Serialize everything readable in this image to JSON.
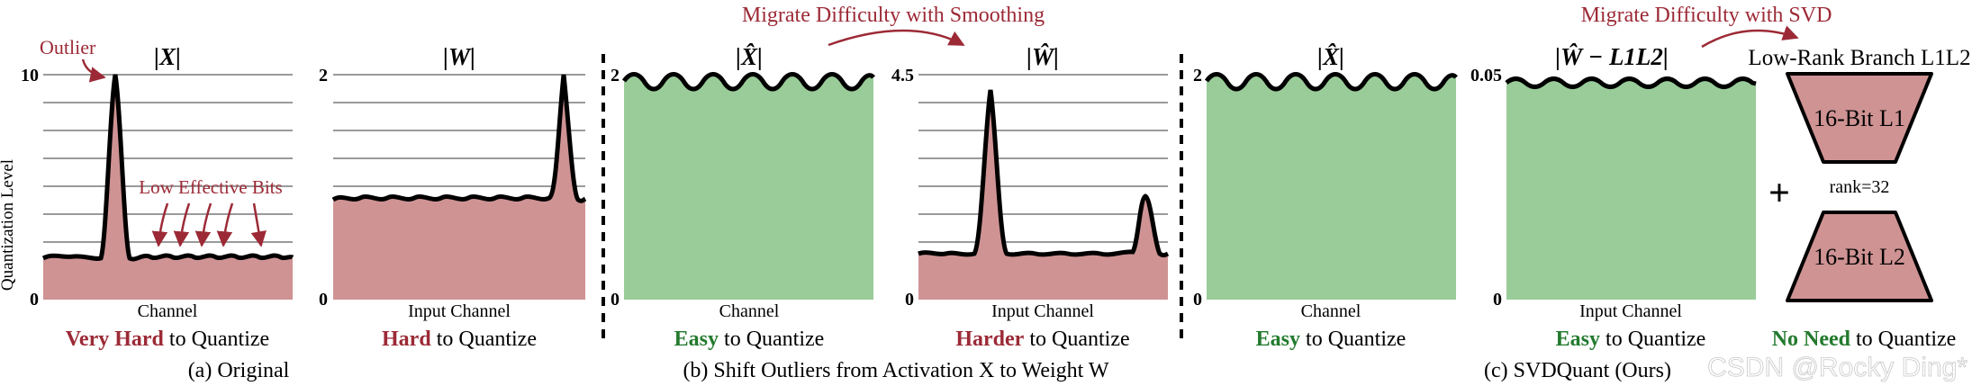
{
  "colors": {
    "red_fill": "#cf9394",
    "green_fill": "#99cc99",
    "dark_red": "#9c2a36",
    "dark_green": "#237a2e",
    "gridline": "#9a9a9a",
    "curve": "#000000"
  },
  "y_axis_label": "Quantization Level",
  "panel_a": {
    "caption": "(a) Original",
    "outlier_label": "Outlier",
    "low_bits_label": "Low Effective Bits",
    "plot_x": {
      "title": "|X|",
      "ytick_top": "10",
      "ytick_bottom": "0",
      "xlabel": "Channel",
      "verdict_strong": "Very Hard",
      "verdict_rest": " to Quantize"
    },
    "plot_w": {
      "title": "|W|",
      "ytick_top": "2",
      "ytick_bottom": "0",
      "xlabel": "Input Channel",
      "verdict_strong": "Hard",
      "verdict_rest": " to Quantize"
    }
  },
  "panel_b": {
    "caption": "(b) Shift Outliers from Activation X to Weight W",
    "migrate_label": "Migrate Difficulty with Smoothing",
    "plot_x": {
      "title": "|X̂|",
      "ytick_top": "2",
      "ytick_bottom": "0",
      "xlabel": "Channel",
      "verdict_strong": "Easy",
      "verdict_rest": " to Quantize"
    },
    "plot_w": {
      "title": "|Ŵ|",
      "ytick_top": "4.5",
      "ytick_bottom": "0",
      "xlabel": "Input Channel",
      "verdict_strong": "Harder",
      "verdict_rest": " to Quantize"
    }
  },
  "panel_c": {
    "caption": "(c) SVDQuant (Ours)",
    "migrate_label": "Migrate Difficulty with SVD",
    "plot_x": {
      "title": "|X̂|",
      "ytick_top": "2",
      "ytick_bottom": "0",
      "xlabel": "Channel",
      "verdict_strong": "Easy",
      "verdict_rest": " to Quantize"
    },
    "plot_w": {
      "title": "|Ŵ − L1L2|",
      "ytick_top": "0.05",
      "ytick_bottom": "0",
      "xlabel": "Input Channel",
      "verdict_strong": "Easy",
      "verdict_rest": " to Quantize"
    },
    "lowrank": {
      "title": "Low-Rank Branch L1L2",
      "l1_label": "16-Bit L1",
      "l2_label": "16-Bit L2",
      "plus": "+",
      "rank_label": "rank=32",
      "verdict_strong": "No Need",
      "verdict_rest": " to Quantize"
    }
  },
  "watermark": "CSDN @Rocky Ding*"
}
